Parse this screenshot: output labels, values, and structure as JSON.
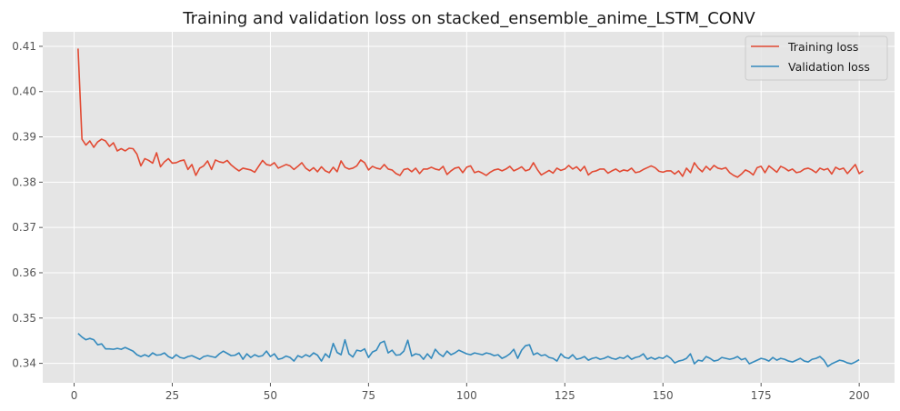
{
  "chart_data": {
    "type": "line",
    "title": "Training and validation loss on stacked_ensemble_anime_LSTM_CONV",
    "xlabel": "",
    "ylabel": "",
    "xlim": [
      -8,
      209
    ],
    "ylim": [
      0.3357,
      0.4132
    ],
    "x_ticks": [
      0,
      25,
      50,
      75,
      100,
      125,
      150,
      175,
      200
    ],
    "y_ticks": [
      0.34,
      0.35,
      0.36,
      0.37,
      0.38,
      0.39,
      0.4,
      0.41
    ],
    "y_tick_labels": [
      "0.34",
      "0.35",
      "0.36",
      "0.37",
      "0.38",
      "0.39",
      "0.40",
      "0.41"
    ],
    "grid": true,
    "legend_position": "top-right",
    "epochs": {
      "start": 1,
      "end": 200
    },
    "series": [
      {
        "name": "Training loss",
        "color": "#e24a33",
        "values": [
          0.4095,
          0.3895,
          0.3882,
          0.3891,
          0.3877,
          0.3889,
          0.3895,
          0.3891,
          0.3879,
          0.3887,
          0.3869,
          0.3874,
          0.3869,
          0.3875,
          0.3874,
          0.3862,
          0.3836,
          0.3852,
          0.3848,
          0.3842,
          0.3865,
          0.3834,
          0.3845,
          0.3852,
          0.3842,
          0.3843,
          0.3847,
          0.3849,
          0.3828,
          0.3839,
          0.3815,
          0.3831,
          0.3836,
          0.3847,
          0.3828,
          0.3849,
          0.3845,
          0.3843,
          0.3848,
          0.3838,
          0.3831,
          0.3825,
          0.3831,
          0.3829,
          0.3827,
          0.3822,
          0.3835,
          0.3848,
          0.3839,
          0.3837,
          0.3843,
          0.3831,
          0.3835,
          0.3839,
          0.3836,
          0.3828,
          0.3835,
          0.3843,
          0.3831,
          0.3825,
          0.3832,
          0.3823,
          0.3834,
          0.3825,
          0.3821,
          0.3833,
          0.3823,
          0.3847,
          0.3833,
          0.3829,
          0.3831,
          0.3836,
          0.3849,
          0.3843,
          0.3827,
          0.3835,
          0.3831,
          0.3829,
          0.3839,
          0.3829,
          0.3827,
          0.3819,
          0.3815,
          0.3828,
          0.383,
          0.3823,
          0.3831,
          0.3819,
          0.3829,
          0.3829,
          0.3833,
          0.3829,
          0.3827,
          0.3835,
          0.3817,
          0.3825,
          0.3831,
          0.3833,
          0.3821,
          0.3833,
          0.3836,
          0.3821,
          0.3824,
          0.382,
          0.3815,
          0.3822,
          0.3827,
          0.3829,
          0.3825,
          0.3829,
          0.3835,
          0.3825,
          0.3829,
          0.3834,
          0.3825,
          0.3828,
          0.3843,
          0.3828,
          0.3816,
          0.3821,
          0.3826,
          0.382,
          0.3831,
          0.3826,
          0.3829,
          0.3837,
          0.3829,
          0.3834,
          0.3825,
          0.3835,
          0.3816,
          0.3823,
          0.3825,
          0.3829,
          0.3829,
          0.382,
          0.3825,
          0.3829,
          0.3823,
          0.3827,
          0.3825,
          0.3831,
          0.3821,
          0.3823,
          0.3828,
          0.3832,
          0.3836,
          0.3832,
          0.3824,
          0.3822,
          0.3825,
          0.3825,
          0.3818,
          0.3825,
          0.3813,
          0.3831,
          0.3821,
          0.3843,
          0.3831,
          0.3823,
          0.3835,
          0.3827,
          0.3837,
          0.3831,
          0.3829,
          0.3832,
          0.3821,
          0.3815,
          0.3811,
          0.3818,
          0.3827,
          0.3823,
          0.3816,
          0.3832,
          0.3835,
          0.3821,
          0.3836,
          0.3829,
          0.3822,
          0.3835,
          0.3831,
          0.3825,
          0.3829,
          0.3821,
          0.3823,
          0.3829,
          0.3831,
          0.3827,
          0.3821,
          0.3831,
          0.3827,
          0.383,
          0.3818,
          0.3833,
          0.3828,
          0.3831,
          0.3819,
          0.3829,
          0.3839,
          0.3819,
          0.3825
        ]
      },
      {
        "name": "Validation loss",
        "color": "#348abd",
        "values": [
          0.3466,
          0.3458,
          0.3452,
          0.3455,
          0.3452,
          0.3441,
          0.3443,
          0.3432,
          0.3432,
          0.3431,
          0.3433,
          0.3431,
          0.3435,
          0.3431,
          0.3427,
          0.3419,
          0.3415,
          0.3419,
          0.3415,
          0.3423,
          0.3418,
          0.3419,
          0.3423,
          0.3415,
          0.3411,
          0.3419,
          0.3413,
          0.3411,
          0.3415,
          0.3417,
          0.3413,
          0.3409,
          0.3415,
          0.3417,
          0.3415,
          0.3413,
          0.3421,
          0.3427,
          0.3422,
          0.3417,
          0.3418,
          0.3423,
          0.3409,
          0.3421,
          0.3413,
          0.3419,
          0.3415,
          0.3417,
          0.3427,
          0.3415,
          0.3421,
          0.3409,
          0.3411,
          0.3416,
          0.3413,
          0.3405,
          0.3417,
          0.3413,
          0.3419,
          0.3415,
          0.3423,
          0.3418,
          0.3405,
          0.3421,
          0.3413,
          0.3444,
          0.3424,
          0.3419,
          0.3452,
          0.3421,
          0.3414,
          0.3429,
          0.3427,
          0.3432,
          0.3413,
          0.3425,
          0.3429,
          0.3445,
          0.3449,
          0.3423,
          0.3429,
          0.3418,
          0.3419,
          0.3427,
          0.3451,
          0.3416,
          0.3421,
          0.3419,
          0.3409,
          0.3421,
          0.3411,
          0.3431,
          0.3421,
          0.3415,
          0.3427,
          0.3419,
          0.3423,
          0.3429,
          0.3425,
          0.3421,
          0.3419,
          0.3423,
          0.3421,
          0.3419,
          0.3423,
          0.3421,
          0.3417,
          0.3419,
          0.3411,
          0.3415,
          0.3421,
          0.3431,
          0.3411,
          0.3429,
          0.3439,
          0.3441,
          0.3419,
          0.3423,
          0.3417,
          0.3419,
          0.3413,
          0.3411,
          0.3405,
          0.3421,
          0.3413,
          0.3411,
          0.3419,
          0.3409,
          0.3411,
          0.3415,
          0.3407,
          0.3411,
          0.3413,
          0.3409,
          0.3411,
          0.3415,
          0.3411,
          0.3409,
          0.3413,
          0.3411,
          0.3417,
          0.3409,
          0.3413,
          0.3415,
          0.3421,
          0.3409,
          0.3413,
          0.3409,
          0.3413,
          0.3411,
          0.3417,
          0.3411,
          0.3401,
          0.3405,
          0.3407,
          0.3411,
          0.3421,
          0.3399,
          0.3407,
          0.3405,
          0.3415,
          0.3411,
          0.3405,
          0.3407,
          0.3413,
          0.3411,
          0.3409,
          0.3411,
          0.3415,
          0.3408,
          0.3411,
          0.3399,
          0.3403,
          0.3407,
          0.3411,
          0.3409,
          0.3405,
          0.3413,
          0.3407,
          0.3411,
          0.3409,
          0.3405,
          0.3403,
          0.3407,
          0.3411,
          0.3405,
          0.3403,
          0.3409,
          0.3411,
          0.3415,
          0.3407,
          0.3393,
          0.3399,
          0.3403,
          0.3407,
          0.3405,
          0.3401,
          0.3399,
          0.3403,
          0.3408
        ]
      }
    ]
  }
}
